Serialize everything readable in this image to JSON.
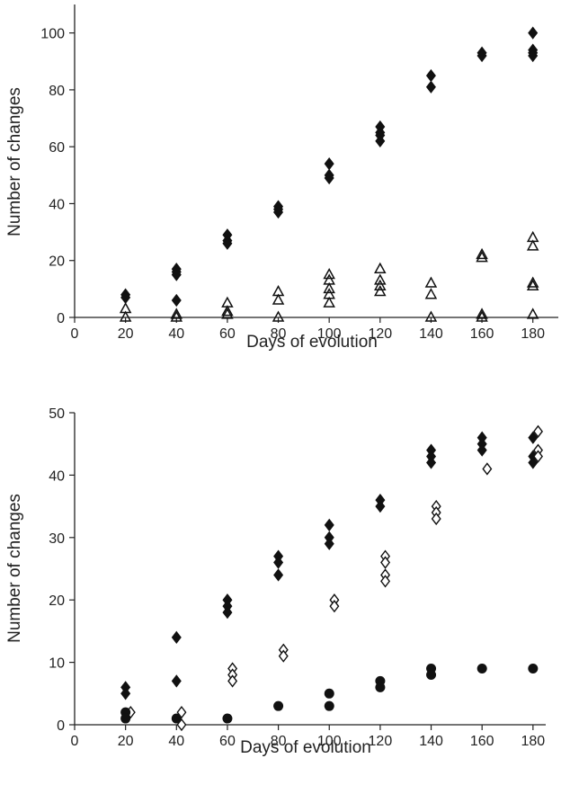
{
  "chart_data": [
    {
      "type": "scatter",
      "title": "",
      "xlabel": "Days of evolution",
      "ylabel": "Number of changes",
      "xlim": [
        0,
        190
      ],
      "ylim": [
        0,
        110
      ],
      "xticks": [
        0,
        20,
        40,
        60,
        80,
        100,
        120,
        140,
        160,
        180
      ],
      "yticks": [
        0,
        20,
        40,
        60,
        80,
        100
      ],
      "grid": false,
      "legend": "none",
      "series": [
        {
          "marker": "diamond-filled",
          "color": "#111111",
          "points": [
            [
              20,
              8
            ],
            [
              20,
              7
            ],
            [
              40,
              17
            ],
            [
              40,
              16
            ],
            [
              40,
              15
            ],
            [
              40,
              6
            ],
            [
              60,
              29
            ],
            [
              60,
              27
            ],
            [
              60,
              26
            ],
            [
              80,
              39
            ],
            [
              80,
              38
            ],
            [
              80,
              37
            ],
            [
              100,
              54
            ],
            [
              100,
              50
            ],
            [
              100,
              49
            ],
            [
              120,
              67
            ],
            [
              120,
              65
            ],
            [
              120,
              64
            ],
            [
              120,
              62
            ],
            [
              140,
              85
            ],
            [
              140,
              81
            ],
            [
              160,
              93
            ],
            [
              160,
              92
            ],
            [
              180,
              100
            ],
            [
              180,
              94
            ],
            [
              180,
              93
            ],
            [
              180,
              92
            ]
          ]
        },
        {
          "marker": "triangle-open",
          "color": "#111111",
          "points": [
            [
              20,
              3
            ],
            [
              20,
              0
            ],
            [
              40,
              1
            ],
            [
              40,
              0
            ],
            [
              60,
              5
            ],
            [
              60,
              2
            ],
            [
              60,
              1
            ],
            [
              80,
              9
            ],
            [
              80,
              6
            ],
            [
              80,
              0
            ],
            [
              100,
              15
            ],
            [
              100,
              13
            ],
            [
              100,
              10
            ],
            [
              100,
              8
            ],
            [
              100,
              5
            ],
            [
              120,
              17
            ],
            [
              120,
              13
            ],
            [
              120,
              11
            ],
            [
              120,
              9
            ],
            [
              140,
              12
            ],
            [
              140,
              8
            ],
            [
              140,
              0
            ],
            [
              160,
              22
            ],
            [
              160,
              21
            ],
            [
              160,
              1
            ],
            [
              160,
              0
            ],
            [
              180,
              28
            ],
            [
              180,
              25
            ],
            [
              180,
              12
            ],
            [
              180,
              11
            ],
            [
              180,
              1
            ]
          ]
        }
      ]
    },
    {
      "type": "scatter",
      "title": "",
      "xlabel": "Days of evolution",
      "ylabel": "Number of changes",
      "xlim": [
        0,
        185
      ],
      "ylim": [
        0,
        50
      ],
      "xticks": [
        0,
        20,
        40,
        60,
        80,
        100,
        120,
        140,
        160,
        180
      ],
      "yticks": [
        0,
        10,
        20,
        30,
        40,
        50
      ],
      "grid": false,
      "legend": "none",
      "series": [
        {
          "marker": "diamond-filled",
          "color": "#111111",
          "points": [
            [
              20,
              6
            ],
            [
              20,
              5
            ],
            [
              40,
              14
            ],
            [
              40,
              7
            ],
            [
              60,
              20
            ],
            [
              60,
              19
            ],
            [
              60,
              18
            ],
            [
              80,
              27
            ],
            [
              80,
              26
            ],
            [
              80,
              24
            ],
            [
              100,
              32
            ],
            [
              100,
              30
            ],
            [
              100,
              29
            ],
            [
              120,
              36
            ],
            [
              120,
              35
            ],
            [
              140,
              44
            ],
            [
              140,
              43
            ],
            [
              140,
              42
            ],
            [
              160,
              46
            ],
            [
              160,
              45
            ],
            [
              160,
              44
            ],
            [
              180,
              46
            ],
            [
              180,
              43
            ],
            [
              180,
              42
            ]
          ]
        },
        {
          "marker": "diamond-open",
          "color": "#111111",
          "points": [
            [
              22,
              2
            ],
            [
              42,
              2
            ],
            [
              42,
              0
            ],
            [
              62,
              9
            ],
            [
              62,
              8
            ],
            [
              62,
              7
            ],
            [
              82,
              12
            ],
            [
              82,
              11
            ],
            [
              102,
              20
            ],
            [
              102,
              19
            ],
            [
              122,
              27
            ],
            [
              122,
              26
            ],
            [
              122,
              24
            ],
            [
              122,
              23
            ],
            [
              142,
              35
            ],
            [
              142,
              34
            ],
            [
              142,
              33
            ],
            [
              162,
              41
            ],
            [
              182,
              47
            ],
            [
              182,
              44
            ],
            [
              182,
              43
            ]
          ]
        },
        {
          "marker": "circle-filled",
          "color": "#111111",
          "points": [
            [
              20,
              2
            ],
            [
              20,
              1
            ],
            [
              40,
              1
            ],
            [
              60,
              1
            ],
            [
              80,
              3
            ],
            [
              100,
              5
            ],
            [
              100,
              3
            ],
            [
              120,
              7
            ],
            [
              120,
              6
            ],
            [
              140,
              9
            ],
            [
              140,
              8
            ],
            [
              160,
              9
            ],
            [
              180,
              9
            ]
          ]
        }
      ]
    }
  ]
}
